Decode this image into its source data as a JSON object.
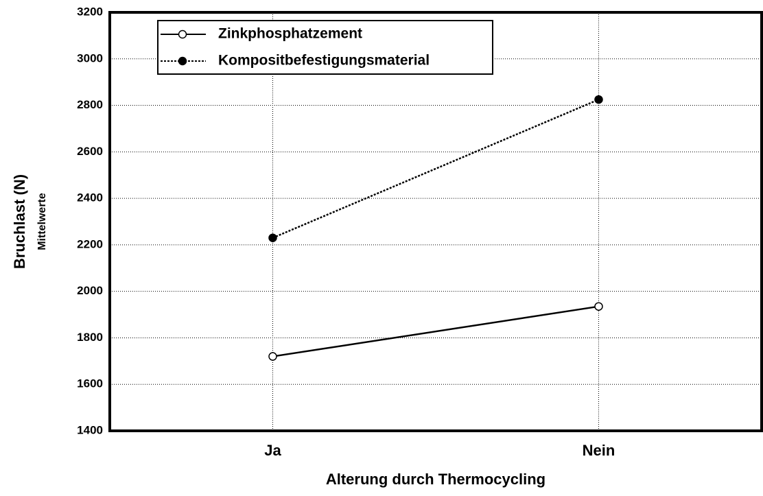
{
  "chart_data": {
    "type": "line",
    "x_label": "Alterung durch Thermocycling",
    "y_label": "Bruchlast (N)",
    "y_sublabel": "Mittelwerte",
    "categories": [
      "Ja",
      "Nein"
    ],
    "series": [
      {
        "name": "Zinkphosphatzement",
        "color": "#000000",
        "marker": "open",
        "dash": "solid",
        "values": [
          1720,
          1935
        ]
      },
      {
        "name": "Kompositbefestigungsmaterial",
        "color": "#000000",
        "marker": "filled",
        "dash": "dotted",
        "values": [
          2230,
          2825
        ]
      }
    ],
    "ylim": [
      1400,
      3200
    ],
    "yticks": [
      1400,
      1600,
      1800,
      2000,
      2200,
      2400,
      2600,
      2800,
      3000,
      3200
    ],
    "grid": true
  }
}
